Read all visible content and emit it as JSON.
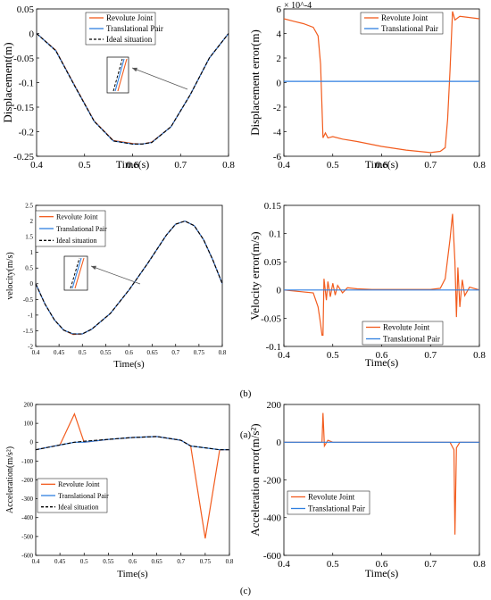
{
  "colors": {
    "revolute": "#F25C1E",
    "translational": "#2F7FE0",
    "ideal": "#000000",
    "axis": "#000000",
    "background": "#ffffff"
  },
  "panel_labels": [
    "(a)",
    "(b)",
    "(c)"
  ],
  "chart_data": [
    {
      "id": "a-left",
      "type": "line",
      "title": "",
      "xlabel": "Time(s)",
      "ylabel": "Displacement(m)",
      "xlim": [
        0.4,
        0.8
      ],
      "ylim": [
        -0.25,
        0.05
      ],
      "xticks": [
        0.4,
        0.5,
        0.6,
        0.7,
        0.8
      ],
      "yticks": [
        -0.25,
        -0.2,
        -0.15,
        -0.1,
        -0.05,
        0,
        0.05
      ],
      "xtick_labels": [
        "0.4",
        "0.5",
        "0.6",
        "0.7",
        "0.8"
      ],
      "ytick_labels": [
        "-0.25",
        "-0.2",
        "-0.15",
        "-0.1",
        "-0.05",
        "0",
        "0.05"
      ],
      "legend": [
        "Revolute Joint",
        "Translational Pair",
        "Ideal situation"
      ],
      "legend_position": "top-right",
      "annotation": "zoom inset with arrow",
      "x": [
        0.4,
        0.44,
        0.48,
        0.52,
        0.56,
        0.6,
        0.62,
        0.64,
        0.68,
        0.72,
        0.76,
        0.8
      ],
      "series": [
        {
          "name": "Revolute Joint",
          "values": [
            0.0,
            -0.034,
            -0.107,
            -0.178,
            -0.218,
            -0.224,
            -0.225,
            -0.221,
            -0.19,
            -0.125,
            -0.05,
            0.0
          ]
        },
        {
          "name": "Translational Pair",
          "values": [
            0.0,
            -0.035,
            -0.108,
            -0.179,
            -0.219,
            -0.225,
            -0.225,
            -0.222,
            -0.19,
            -0.125,
            -0.05,
            0.0
          ]
        },
        {
          "name": "Ideal situation",
          "values": [
            0.0,
            -0.035,
            -0.108,
            -0.179,
            -0.219,
            -0.225,
            -0.225,
            -0.222,
            -0.19,
            -0.125,
            -0.05,
            0.0
          ]
        }
      ]
    },
    {
      "id": "a-right",
      "type": "line",
      "title": "",
      "xlabel": "Time(s)",
      "ylabel": "Displacement error(m)",
      "exponent_label": "× 10^-4",
      "xlim": [
        0.4,
        0.8
      ],
      "ylim": [
        -6,
        6
      ],
      "xticks": [
        0.4,
        0.5,
        0.6,
        0.7,
        0.8
      ],
      "yticks": [
        -6,
        -4,
        -2,
        0,
        2,
        4,
        6
      ],
      "xtick_labels": [
        "0.4",
        "0.5",
        "0.6",
        "0.7",
        "0.8"
      ],
      "ytick_labels": [
        "-6",
        "-4",
        "-2",
        "0",
        "2",
        "4",
        "6"
      ],
      "legend": [
        "Revolute Joint",
        "Translational Pair"
      ],
      "legend_position": "top-right",
      "series": [
        {
          "name": "Revolute Joint",
          "x": [
            0.4,
            0.42,
            0.44,
            0.46,
            0.47,
            0.475,
            0.48,
            0.485,
            0.49,
            0.5,
            0.52,
            0.55,
            0.6,
            0.65,
            0.7,
            0.72,
            0.73,
            0.735,
            0.74,
            0.745,
            0.75,
            0.76,
            0.8
          ],
          "values": [
            5.2,
            5.0,
            4.8,
            4.5,
            3.8,
            1.5,
            -4.5,
            -4.1,
            -4.5,
            -4.4,
            -4.6,
            -4.8,
            -5.2,
            -5.5,
            -5.7,
            -5.6,
            -5.3,
            -3.0,
            1.0,
            5.8,
            5.1,
            5.4,
            5.2
          ]
        },
        {
          "name": "Translational Pair",
          "x": [
            0.4,
            0.8
          ],
          "values": [
            0.1,
            0.1
          ]
        }
      ]
    },
    {
      "id": "b-left",
      "type": "line",
      "title": "",
      "xlabel": "Time(s)",
      "ylabel": "velocity(m/s)",
      "xlim": [
        0.4,
        0.8
      ],
      "ylim": [
        -2,
        2.5
      ],
      "xticks": [
        0.4,
        0.45,
        0.5,
        0.55,
        0.6,
        0.65,
        0.7,
        0.75,
        0.8
      ],
      "yticks": [
        -2,
        -1.5,
        -1,
        -0.5,
        0,
        0.5,
        1,
        1.5,
        2,
        2.5
      ],
      "xtick_labels": [
        "0.4",
        "0.45",
        "0.5",
        "0.55",
        "0.6",
        "0.65",
        "0.7",
        "0.75",
        "0.8"
      ],
      "ytick_labels": [
        "-2",
        "-1.5",
        "-1",
        "-0.5",
        "0",
        "0.5",
        "1",
        "1.5",
        "2",
        "2.5"
      ],
      "legend": [
        "Revolute Joint",
        "Translational Pair",
        "Ideal situation"
      ],
      "legend_position": "top-left",
      "annotation": "zoom inset with arrow",
      "x": [
        0.4,
        0.42,
        0.44,
        0.46,
        0.48,
        0.5,
        0.52,
        0.56,
        0.6,
        0.64,
        0.68,
        0.7,
        0.72,
        0.74,
        0.76,
        0.78,
        0.8
      ],
      "series": [
        {
          "name": "Revolute Joint",
          "values": [
            0.0,
            -0.65,
            -1.15,
            -1.48,
            -1.62,
            -1.6,
            -1.45,
            -0.95,
            -0.2,
            0.65,
            1.55,
            1.9,
            2.0,
            1.85,
            1.4,
            0.75,
            0.0
          ]
        },
        {
          "name": "Translational Pair",
          "values": [
            0.0,
            -0.65,
            -1.15,
            -1.48,
            -1.6,
            -1.6,
            -1.45,
            -0.95,
            -0.2,
            0.65,
            1.55,
            1.9,
            2.0,
            1.85,
            1.4,
            0.75,
            0.0
          ]
        },
        {
          "name": "Ideal situation",
          "values": [
            0.0,
            -0.65,
            -1.15,
            -1.48,
            -1.6,
            -1.6,
            -1.45,
            -0.95,
            -0.2,
            0.65,
            1.55,
            1.9,
            2.0,
            1.85,
            1.4,
            0.75,
            0.0
          ]
        }
      ]
    },
    {
      "id": "b-right",
      "type": "line",
      "title": "",
      "xlabel": "Time(s)",
      "ylabel": "Velocity error(m/s)",
      "xlim": [
        0.4,
        0.8
      ],
      "ylim": [
        -0.1,
        0.15
      ],
      "xticks": [
        0.4,
        0.5,
        0.6,
        0.7,
        0.8
      ],
      "yticks": [
        -0.1,
        -0.05,
        0,
        0.05,
        0.1,
        0.15
      ],
      "xtick_labels": [
        "0.4",
        "0.5",
        "0.6",
        "0.7",
        "0.8"
      ],
      "ytick_labels": [
        "-0.1",
        "-0.05",
        "0",
        "0.05",
        "0.1",
        "0.15"
      ],
      "legend": [
        "Revolute Joint",
        "Translational Pair"
      ],
      "legend_position": "bottom-right",
      "series": [
        {
          "name": "Revolute Joint",
          "x": [
            0.4,
            0.46,
            0.47,
            0.475,
            0.478,
            0.48,
            0.482,
            0.487,
            0.49,
            0.495,
            0.5,
            0.505,
            0.51,
            0.52,
            0.53,
            0.55,
            0.58,
            0.62,
            0.66,
            0.7,
            0.72,
            0.73,
            0.74,
            0.745,
            0.75,
            0.753,
            0.756,
            0.76,
            0.765,
            0.77,
            0.78,
            0.8
          ],
          "values": [
            0.0,
            -0.005,
            -0.03,
            -0.06,
            -0.08,
            -0.08,
            0.02,
            -0.018,
            0.015,
            -0.012,
            0.012,
            -0.009,
            0.008,
            -0.005,
            0.004,
            0.002,
            0.001,
            0.001,
            0.001,
            0.001,
            0.003,
            0.02,
            0.09,
            0.135,
            0.05,
            -0.048,
            0.04,
            -0.03,
            0.018,
            -0.01,
            0.005,
            0.0
          ]
        },
        {
          "name": "Translational Pair",
          "x": [
            0.4,
            0.8
          ],
          "values": [
            0.0,
            0.0
          ]
        }
      ]
    },
    {
      "id": "c-left",
      "type": "line",
      "title": "",
      "xlabel": "Time(s)",
      "ylabel": "Acceleration(m/s²)",
      "xlim": [
        0.4,
        0.8
      ],
      "ylim": [
        -600,
        200
      ],
      "xticks": [
        0.4,
        0.45,
        0.5,
        0.55,
        0.6,
        0.65,
        0.7,
        0.75,
        0.8
      ],
      "yticks": [
        -600,
        -500,
        -400,
        -300,
        -200,
        -100,
        0,
        100,
        200
      ],
      "xtick_labels": [
        "0.4",
        "0.45",
        "0.5",
        "0.55",
        "0.6",
        "0.65",
        "0.7",
        "0.75",
        "0.8"
      ],
      "ytick_labels": [
        "-600",
        "-500",
        "-400",
        "-300",
        "-200",
        "-100",
        "0",
        "100",
        "200"
      ],
      "legend": [
        "Revolute Joint",
        "Translational Pair",
        "Ideal situation"
      ],
      "legend_position": "bottom-left",
      "x": [
        0.4,
        0.45,
        0.48,
        0.5,
        0.55,
        0.6,
        0.65,
        0.7,
        0.72,
        0.75,
        0.78,
        0.8
      ],
      "series": [
        {
          "name": "Revolute Joint",
          "values": [
            -40,
            -15,
            150,
            0,
            15,
            25,
            30,
            10,
            -20,
            -510,
            -40,
            -40
          ]
        },
        {
          "name": "Translational Pair",
          "values": [
            -40,
            -15,
            0,
            0,
            15,
            25,
            30,
            10,
            -20,
            -30,
            -40,
            -40
          ]
        },
        {
          "name": "Ideal situation",
          "values": [
            -40,
            -15,
            0,
            5,
            15,
            25,
            30,
            10,
            -20,
            -30,
            -40,
            -40
          ]
        }
      ]
    },
    {
      "id": "c-right",
      "type": "line",
      "title": "",
      "xlabel": "Time(s)",
      "ylabel": "Acceleration error(m/s²)",
      "xlim": [
        0.4,
        0.8
      ],
      "ylim": [
        -600,
        200
      ],
      "xticks": [
        0.4,
        0.5,
        0.6,
        0.7,
        0.8
      ],
      "yticks": [
        -600,
        -400,
        -200,
        0,
        200
      ],
      "xtick_labels": [
        "0.4",
        "0.5",
        "0.6",
        "0.7",
        "0.8"
      ],
      "ytick_labels": [
        "-600",
        "-400",
        "-200",
        "0",
        "200"
      ],
      "legend": [
        "Revolute Joint",
        "Translational Pair"
      ],
      "legend_position": "bottom-left",
      "series": [
        {
          "name": "Revolute Joint",
          "x": [
            0.4,
            0.478,
            0.48,
            0.483,
            0.49,
            0.5,
            0.6,
            0.7,
            0.74,
            0.748,
            0.75,
            0.753,
            0.76,
            0.8
          ],
          "values": [
            0,
            0,
            155,
            -20,
            10,
            0,
            0,
            0,
            0,
            -40,
            -490,
            -30,
            0,
            0
          ]
        },
        {
          "name": "Translational Pair",
          "x": [
            0.4,
            0.8
          ],
          "values": [
            0,
            0
          ]
        }
      ]
    }
  ]
}
